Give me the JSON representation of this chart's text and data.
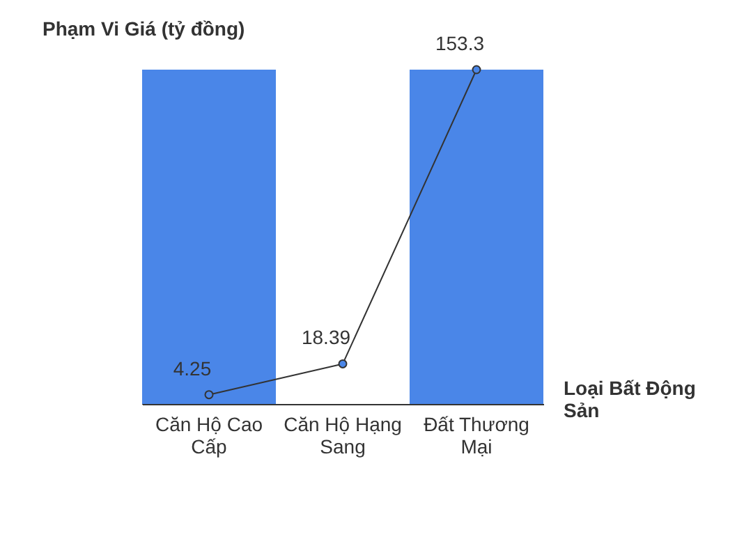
{
  "chart_data": {
    "type": "line",
    "ylabel": "Phạm Vi Giá (tỷ đồng)",
    "xlabel": "Loại Bất Động Sản",
    "marker": "circle",
    "categories": [
      "Căn Hộ Cao Cấp",
      "Căn Hộ Hạng Sang",
      "Đất Thương Mại"
    ],
    "bands": [
      {
        "axis": "x",
        "from": "Căn Hộ Cao Cấp",
        "to": "Căn Hộ Cao Cấp",
        "color": "#4a86e8"
      },
      {
        "axis": "x",
        "from": "Đất Thương Mại",
        "to": "Đất Thương Mại",
        "color": "#4a86e8"
      }
    ],
    "series": [
      {
        "color": "#333333",
        "values": [
          4.25,
          18.39,
          153.3
        ],
        "value_labels": [
          "4.25",
          "18.39",
          "153.3"
        ]
      }
    ]
  }
}
